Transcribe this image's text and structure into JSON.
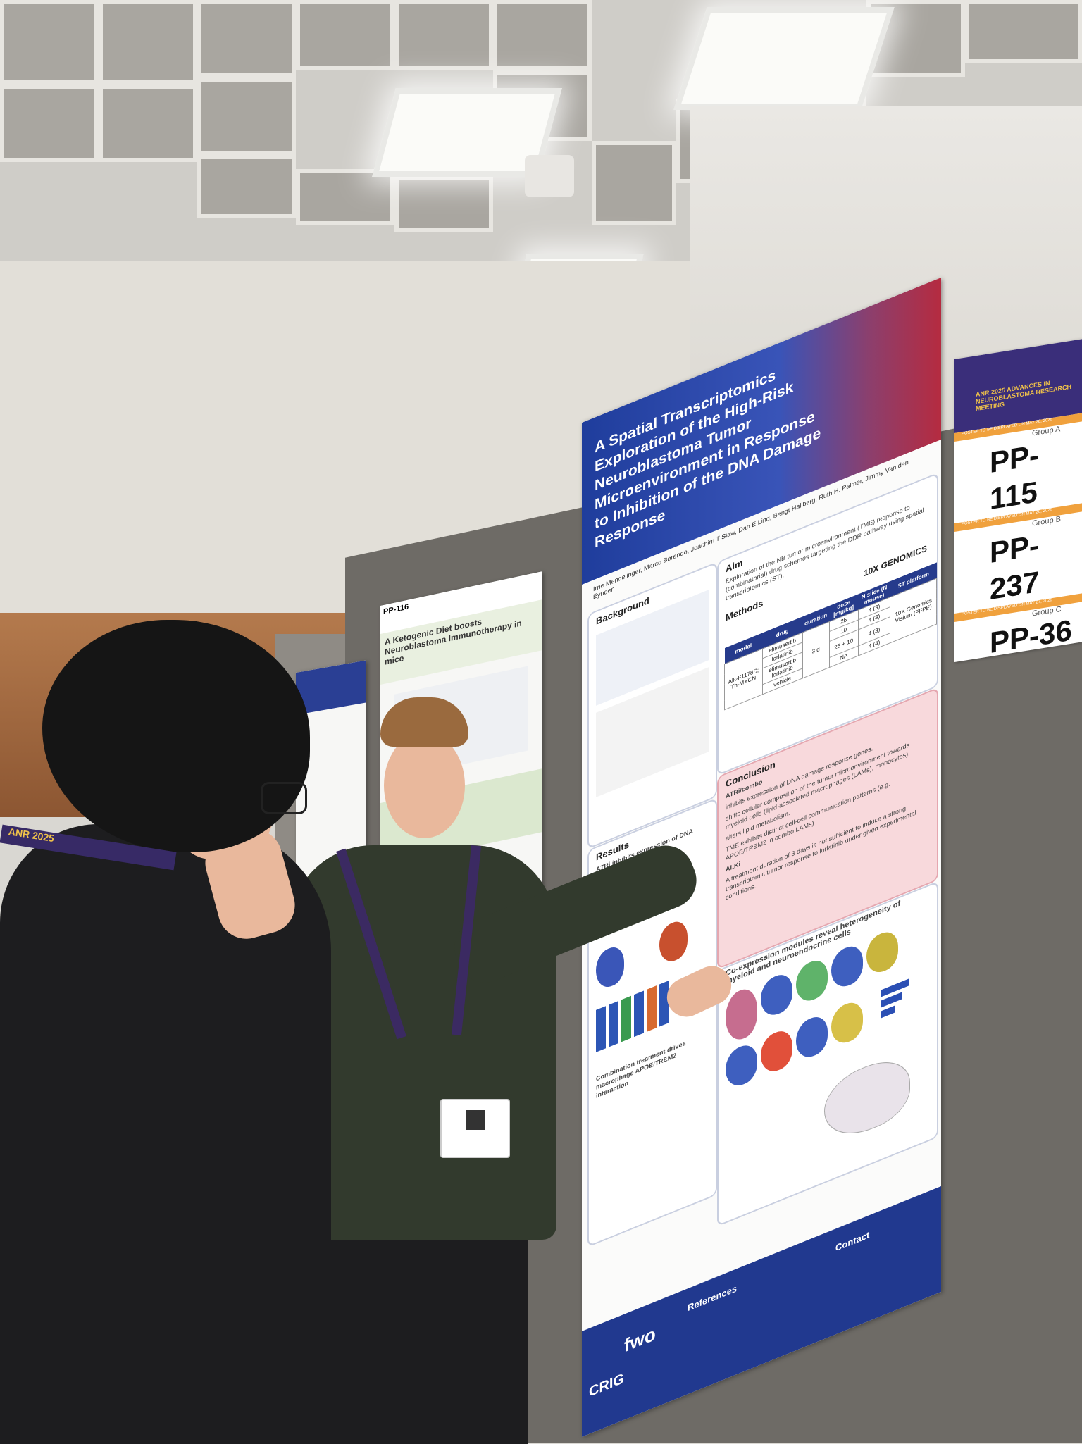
{
  "poster": {
    "title": "A Spatial Transcriptomics Exploration of the High-Risk Neuroblastoma Tumor Microenvironment in Response to Inhibition of the DNA Damage Response",
    "authors": "Irne Mendelinger, Marco Berendo, Joachim T Siaw, Dan E Lind, Bengt Hallberg, Ruth H. Palmer, Jimmy Van den Eynden",
    "aim_heading": "Aim",
    "aim_text": "Exploration of the NB tumor microenvironment (TME) response to (combinatorial) drug schemes targeting the DDR pathway using spatial transcriptomics (ST).",
    "background_heading": "Background",
    "methods_heading": "Methods",
    "platform_logo": "10X GENOMICS",
    "table": {
      "headers": [
        "model",
        "drug",
        "duration",
        "dose [mg/kg]",
        "N slice (N mouse)",
        "ST platform"
      ],
      "model": "Alk-F1178S; Th-MYCN",
      "duration": "3 d",
      "platform": "10X Genomics Visium (FFPE)",
      "rows": [
        {
          "drug": "elimusertib",
          "dose": "25",
          "n": "4 (3)"
        },
        {
          "drug": "lorlatinib",
          "dose": "10",
          "n": "4 (3)"
        },
        {
          "drug": "elimusertib lorlatinib",
          "dose": "25 + 10",
          "n": "4 (3)"
        },
        {
          "drug": "vehicle",
          "dose": "NA",
          "n": "4 (4)"
        }
      ]
    },
    "conclusion_heading": "Conclusion",
    "conclusion_sub1": "ATRi/combo",
    "conclusion_b1": "inhibits expression of DNA damage response genes.",
    "conclusion_b2": "shifts cellular composition of the tumor microenvironment towards myeloid cells (lipid-associated macrophages (LAMs), monocytes).",
    "conclusion_b3": "alters lipid metabolism.",
    "conclusion_b4": "TME exhibits distinct cell-cell communication patterns (e.g. APOE/TREM2 in combo LAMs)",
    "conclusion_sub2": "ALKi",
    "conclusion_b5": "A treatment duration of 3 days is not sufficient to induce a strong transcriptomic tumor response to lorlatinib under given experimental conditions.",
    "results_heading": "Results",
    "results_sub": "ATRi inhibits expression of DNA damage response genes",
    "coexp_heading": "Co-expression modules reveal heterogeneity of myeloid and neuroendocrine cells",
    "combo_heading": "Combination treatment drives macrophage APOE/TREM2 interaction",
    "references_heading": "References",
    "contact_heading": "Contact",
    "fwo_logo": "fwo",
    "crig_logo": "CRIG"
  },
  "sign": {
    "header": "ANR 2025 ADVANCES IN NEUROBLASTOMA RESEARCH MEETING",
    "note_a": "POSTER TO BE DISPLAYED ON MAY 26, 2025",
    "group_a": "Group A",
    "code_a": "PP-115",
    "note_b": "POSTER TO BE DISPLAYED ON MAY 26, 2025",
    "group_b": "Group B",
    "code_b": "PP-237",
    "note_c": "POSTER TO BE DISPLAYED ON MAY 27, 2025",
    "group_c": "Group C",
    "code_c": "PP-36"
  },
  "poster_left": {
    "title": "A Ketogenic Diet boosts Neuroblastoma Immunotherapy in mice",
    "code": "PP-116"
  },
  "lanyard_text": "ANR 2025"
}
